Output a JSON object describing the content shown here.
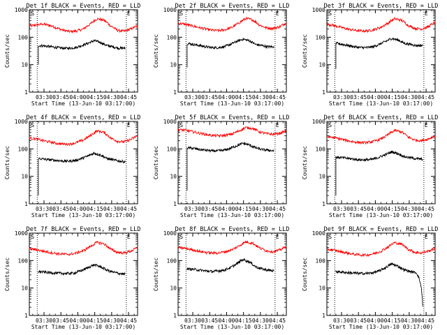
{
  "chart_data": [
    {
      "type": "line",
      "title": "Det 1f BLACK = Events, RED = LLD",
      "xlabel": "Start Time (13-Jun-10 03:17:00)",
      "ylabel": "Counts/sec",
      "xticks": [
        "03:30",
        "03:45",
        "04:00",
        "04:15",
        "04:30",
        "04:45"
      ],
      "yticks": [
        "1",
        "10",
        "100",
        "1000"
      ],
      "ylim": [
        1,
        1000
      ],
      "xlim": [
        "03:17",
        "04:53"
      ],
      "ylog": true,
      "markers": [
        "S",
        "E"
      ],
      "vlines": [
        "03:24",
        "04:43"
      ],
      "series": [
        {
          "color": "#ff0000",
          "values": [
            250,
            280,
            300,
            270,
            220,
            180,
            160,
            170,
            200,
            300,
            470,
            420,
            260,
            180,
            165,
            200,
            260
          ]
        },
        {
          "color": "#000000",
          "start_value": 10,
          "values": [
            50,
            48,
            45,
            42,
            40,
            40,
            42,
            50,
            60,
            75,
            65,
            50,
            45,
            40,
            40
          ]
        }
      ]
    },
    {
      "type": "line",
      "title": "Det 2f BLACK = Events, RED = LLD",
      "xlabel": "Start Time (13-Jun-10 03:17:00)",
      "ylabel": "Counts/sec",
      "xticks": [
        "03:30",
        "03:45",
        "04:00",
        "04:15",
        "04:30",
        "04:45"
      ],
      "yticks": [
        "1",
        "10",
        "100",
        "1000"
      ],
      "ylim": [
        1,
        1000
      ],
      "xlim": [
        "03:17",
        "04:53"
      ],
      "ylog": true,
      "markers": [
        "S",
        "E"
      ],
      "vlines": [
        "03:24",
        "04:43"
      ],
      "series": [
        {
          "color": "#ff0000",
          "values": [
            320,
            300,
            260,
            230,
            200,
            180,
            175,
            190,
            230,
            330,
            480,
            430,
            280,
            220,
            210,
            240,
            330
          ]
        },
        {
          "color": "#000000",
          "start_value": 8,
          "values": [
            60,
            55,
            50,
            45,
            42,
            42,
            45,
            55,
            70,
            85,
            75,
            55,
            50,
            45,
            45
          ]
        }
      ]
    },
    {
      "type": "line",
      "title": "Det 3f BLACK = Events, RED = LLD",
      "xlabel": "Start Time (13-Jun-10 03:17:00)",
      "ylabel": "Counts/sec",
      "xticks": [
        "03:30",
        "03:45",
        "04:00",
        "04:15",
        "04:30",
        "04:45"
      ],
      "yticks": [
        "1",
        "10",
        "100",
        "1000"
      ],
      "ylim": [
        1,
        1000
      ],
      "xlim": [
        "03:17",
        "04:53"
      ],
      "ylog": true,
      "markers": [
        "S",
        "E"
      ],
      "vlines": [
        "03:24",
        "04:43"
      ],
      "series": [
        {
          "color": "#ff0000",
          "values": [
            300,
            270,
            230,
            200,
            180,
            170,
            170,
            190,
            230,
            320,
            470,
            420,
            270,
            210,
            200,
            240,
            350
          ]
        },
        {
          "color": "#000000",
          "start_value": 7,
          "values": [
            60,
            55,
            50,
            45,
            42,
            42,
            45,
            55,
            70,
            90,
            80,
            60,
            55,
            50,
            50
          ]
        }
      ]
    },
    {
      "type": "line",
      "title": "Det 4f BLACK = Events, RED = LLD",
      "xlabel": "Start Time (13-Jun-10 03:17:00)",
      "ylabel": "Counts/sec",
      "xticks": [
        "03:30",
        "03:45",
        "04:00",
        "04:15",
        "04:30",
        "04:45"
      ],
      "yticks": [
        "1",
        "10",
        "100",
        "1000"
      ],
      "ylim": [
        1,
        1000
      ],
      "xlim": [
        "03:17",
        "04:53"
      ],
      "ylog": true,
      "markers": [
        "S",
        "E"
      ],
      "vlines": [
        "03:24",
        "04:43"
      ],
      "series": [
        {
          "color": "#ff0000",
          "values": [
            250,
            230,
            200,
            180,
            160,
            150,
            150,
            170,
            210,
            300,
            450,
            400,
            250,
            190,
            180,
            220,
            300
          ]
        },
        {
          "color": "#000000",
          "start_value": 2,
          "values": [
            45,
            42,
            40,
            38,
            36,
            36,
            38,
            45,
            55,
            70,
            60,
            45,
            40,
            36,
            34
          ]
        }
      ]
    },
    {
      "type": "line",
      "title": "Det 5f BLACK = Events, RED = LLD",
      "xlabel": "Start Time (13-Jun-10 03:17:00)",
      "ylabel": "Counts/sec",
      "xticks": [
        "03:30",
        "03:45",
        "04:00",
        "04:15",
        "04:30",
        "04:45"
      ],
      "yticks": [
        "1",
        "10",
        "100",
        "1000"
      ],
      "ylim": [
        1,
        1000
      ],
      "xlim": [
        "03:17",
        "04:53"
      ],
      "ylog": true,
      "markers": [
        "S",
        "E"
      ],
      "vlines": [
        "03:24",
        "04:43"
      ],
      "series": [
        {
          "color": "#ff0000",
          "values": [
            500,
            480,
            430,
            380,
            340,
            310,
            300,
            310,
            350,
            450,
            600,
            560,
            420,
            360,
            340,
            370,
            450
          ]
        },
        {
          "color": "#000000",
          "start_value": 3,
          "values": [
            110,
            105,
            95,
            90,
            85,
            85,
            90,
            105,
            130,
            160,
            140,
            110,
            95,
            90,
            85
          ]
        }
      ]
    },
    {
      "type": "line",
      "title": "Det 6f BLACK = Events, RED = LLD",
      "xlabel": "Start Time (13-Jun-10 03:17:00)",
      "ylabel": "Counts/sec",
      "xticks": [
        "03:30",
        "03:45",
        "04:00",
        "04:15",
        "04:30",
        "04:45"
      ],
      "yticks": [
        "1",
        "10",
        "100",
        "1000"
      ],
      "ylim": [
        1,
        1000
      ],
      "xlim": [
        "03:17",
        "04:53"
      ],
      "ylog": true,
      "markers": [
        "S",
        "E"
      ],
      "vlines": [
        "03:24",
        "04:43"
      ],
      "series": [
        {
          "color": "#ff0000",
          "values": [
            280,
            260,
            230,
            200,
            180,
            170,
            170,
            190,
            230,
            320,
            470,
            420,
            270,
            210,
            200,
            230,
            300
          ]
        },
        {
          "color": "#000000",
          "start_value": 2,
          "values": [
            50,
            48,
            45,
            42,
            40,
            40,
            42,
            50,
            62,
            78,
            68,
            52,
            48,
            44,
            42
          ]
        }
      ]
    },
    {
      "type": "line",
      "title": "Det 7f BLACK = Events, RED = LLD",
      "xlabel": "Start Time (13-Jun-10 03:17:00)",
      "ylabel": "Counts/sec",
      "xticks": [
        "03:30",
        "03:45",
        "04:00",
        "04:15",
        "04:30",
        "04:45"
      ],
      "yticks": [
        "1",
        "10",
        "100",
        "1000"
      ],
      "ylim": [
        1,
        1000
      ],
      "xlim": [
        "03:17",
        "04:53"
      ],
      "ylog": true,
      "markers": [
        "S",
        "E"
      ],
      "vlines": [
        "03:24",
        "04:43"
      ],
      "series": [
        {
          "color": "#ff0000",
          "values": [
            270,
            250,
            220,
            200,
            180,
            170,
            170,
            190,
            230,
            320,
            460,
            410,
            260,
            200,
            190,
            220,
            290
          ]
        },
        {
          "color": "#000000",
          "start_value": 40,
          "values": [
            40,
            38,
            36,
            35,
            34,
            34,
            36,
            44,
            55,
            70,
            60,
            45,
            38,
            34,
            32
          ]
        }
      ]
    },
    {
      "type": "line",
      "title": "Det 8f BLACK = Events, RED = LLD",
      "xlabel": "Start Time (13-Jun-10 03:17:00)",
      "ylabel": "Counts/sec",
      "xticks": [
        "03:30",
        "03:45",
        "04:00",
        "04:15",
        "04:30",
        "04:45"
      ],
      "yticks": [
        "1",
        "10",
        "100",
        "1000"
      ],
      "ylim": [
        1,
        1000
      ],
      "xlim": [
        "03:17",
        "04:53"
      ],
      "ylog": true,
      "markers": [
        "S",
        "E"
      ],
      "vlines": [
        "03:24",
        "04:43"
      ],
      "series": [
        {
          "color": "#ff0000",
          "values": [
            300,
            280,
            250,
            220,
            200,
            190,
            190,
            210,
            250,
            340,
            480,
            430,
            290,
            230,
            210,
            240,
            320
          ]
        },
        {
          "color": "#000000",
          "start_value": 50,
          "values": [
            50,
            48,
            45,
            42,
            40,
            42,
            45,
            55,
            75,
            110,
            90,
            60,
            50,
            45,
            42
          ]
        }
      ]
    },
    {
      "type": "line",
      "title": "Det 9f BLACK = Events, RED = LLD",
      "xlabel": "Start Time (13-Jun-10 03:17:00)",
      "ylabel": "Counts/sec",
      "xticks": [
        "03:30",
        "03:45",
        "04:00",
        "04:15",
        "04:30",
        "04:45"
      ],
      "yticks": [
        "1",
        "10",
        "100",
        "1000"
      ],
      "ylim": [
        1,
        1000
      ],
      "xlim": [
        "03:17",
        "04:53"
      ],
      "ylog": true,
      "markers": [
        "S",
        "E"
      ],
      "vlines": [
        "03:24",
        "04:43"
      ],
      "series": [
        {
          "color": "#ff0000",
          "values": [
            260,
            240,
            210,
            190,
            170,
            160,
            160,
            180,
            220,
            310,
            450,
            400,
            260,
            200,
            190,
            220,
            280
          ]
        },
        {
          "color": "#000000",
          "start_value": 40,
          "values": [
            40,
            38,
            36,
            35,
            34,
            34,
            36,
            42,
            55,
            75,
            62,
            46,
            40,
            36,
            2
          ]
        }
      ]
    }
  ]
}
